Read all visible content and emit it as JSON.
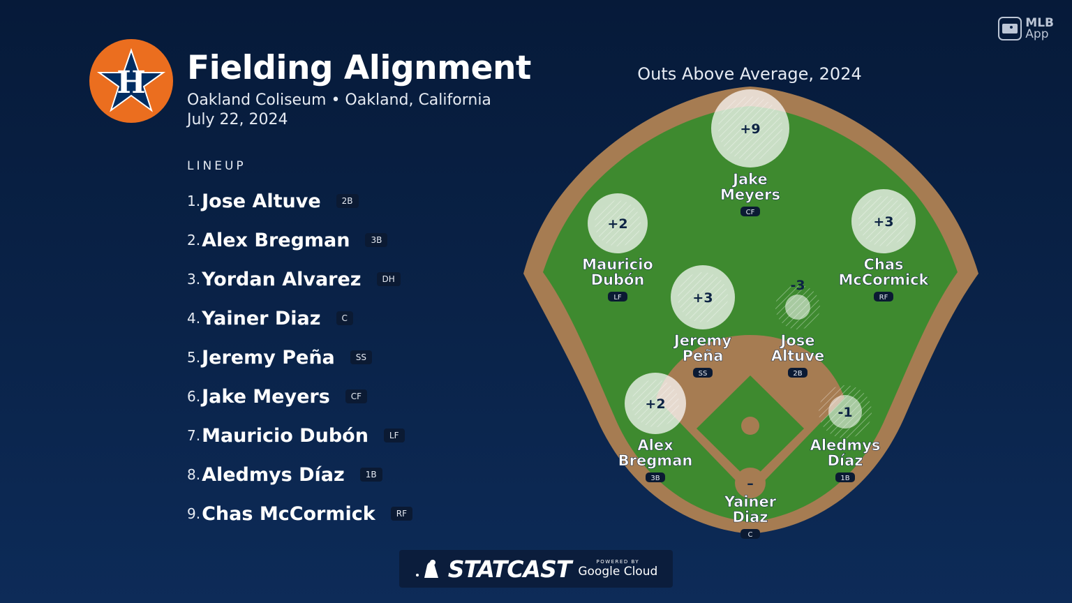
{
  "header": {
    "title": "Fielding Alignment",
    "venue": "Oakland Coliseum • Oakland, California",
    "date": "July 22, 2024",
    "team_logo": "astros-star-logo",
    "logo_letter": "H"
  },
  "lineup": {
    "heading": "LINEUP",
    "players": [
      {
        "num": "1.",
        "name": "Jose Altuve",
        "pos": "2B"
      },
      {
        "num": "2.",
        "name": "Alex Bregman",
        "pos": "3B"
      },
      {
        "num": "3.",
        "name": "Yordan Alvarez",
        "pos": "DH"
      },
      {
        "num": "4.",
        "name": "Yainer Diaz",
        "pos": "C"
      },
      {
        "num": "5.",
        "name": "Jeremy Peña",
        "pos": "SS"
      },
      {
        "num": "6.",
        "name": "Jake Meyers",
        "pos": "CF"
      },
      {
        "num": "7.",
        "name": "Mauricio Dubón",
        "pos": "LF"
      },
      {
        "num": "8.",
        "name": "Aledmys Díaz",
        "pos": "1B"
      },
      {
        "num": "9.",
        "name": "Chas McCormick",
        "pos": "RF"
      }
    ]
  },
  "field": {
    "title": "Outs Above Average, 2024",
    "fielders": [
      {
        "id": "cf",
        "line1": "Jake",
        "line2": "Meyers",
        "pos": "CF",
        "oaa": "+9"
      },
      {
        "id": "lf",
        "line1": "Mauricio",
        "line2": "Dubón",
        "pos": "LF",
        "oaa": "+2"
      },
      {
        "id": "rf",
        "line1": "Chas",
        "line2": "McCormick",
        "pos": "RF",
        "oaa": "+3"
      },
      {
        "id": "ss",
        "line1": "Jeremy",
        "line2": "Peña",
        "pos": "SS",
        "oaa": "+3"
      },
      {
        "id": "2b",
        "line1": "Jose",
        "line2": "Altuve",
        "pos": "2B",
        "oaa": "-3"
      },
      {
        "id": "3b",
        "line1": "Alex",
        "line2": "Bregman",
        "pos": "3B",
        "oaa": "+2"
      },
      {
        "id": "1b",
        "line1": "Aledmys",
        "line2": "Díaz",
        "pos": "1B",
        "oaa": "-1"
      },
      {
        "id": "c",
        "line1": "Yainer",
        "line2": "Diaz",
        "pos": "C",
        "oaa": "–"
      }
    ]
  },
  "branding": {
    "app_name": "MLB",
    "app_sub": "App",
    "statcast": "STATCAST",
    "powered_by": "POWERED BY",
    "cloud": "Google Cloud"
  },
  "colors": {
    "background": "#0a2349",
    "grass": "#3e8a2f",
    "dirt": "#a67c52",
    "astros_orange": "#eb6e1f",
    "astros_navy": "#002d62"
  }
}
